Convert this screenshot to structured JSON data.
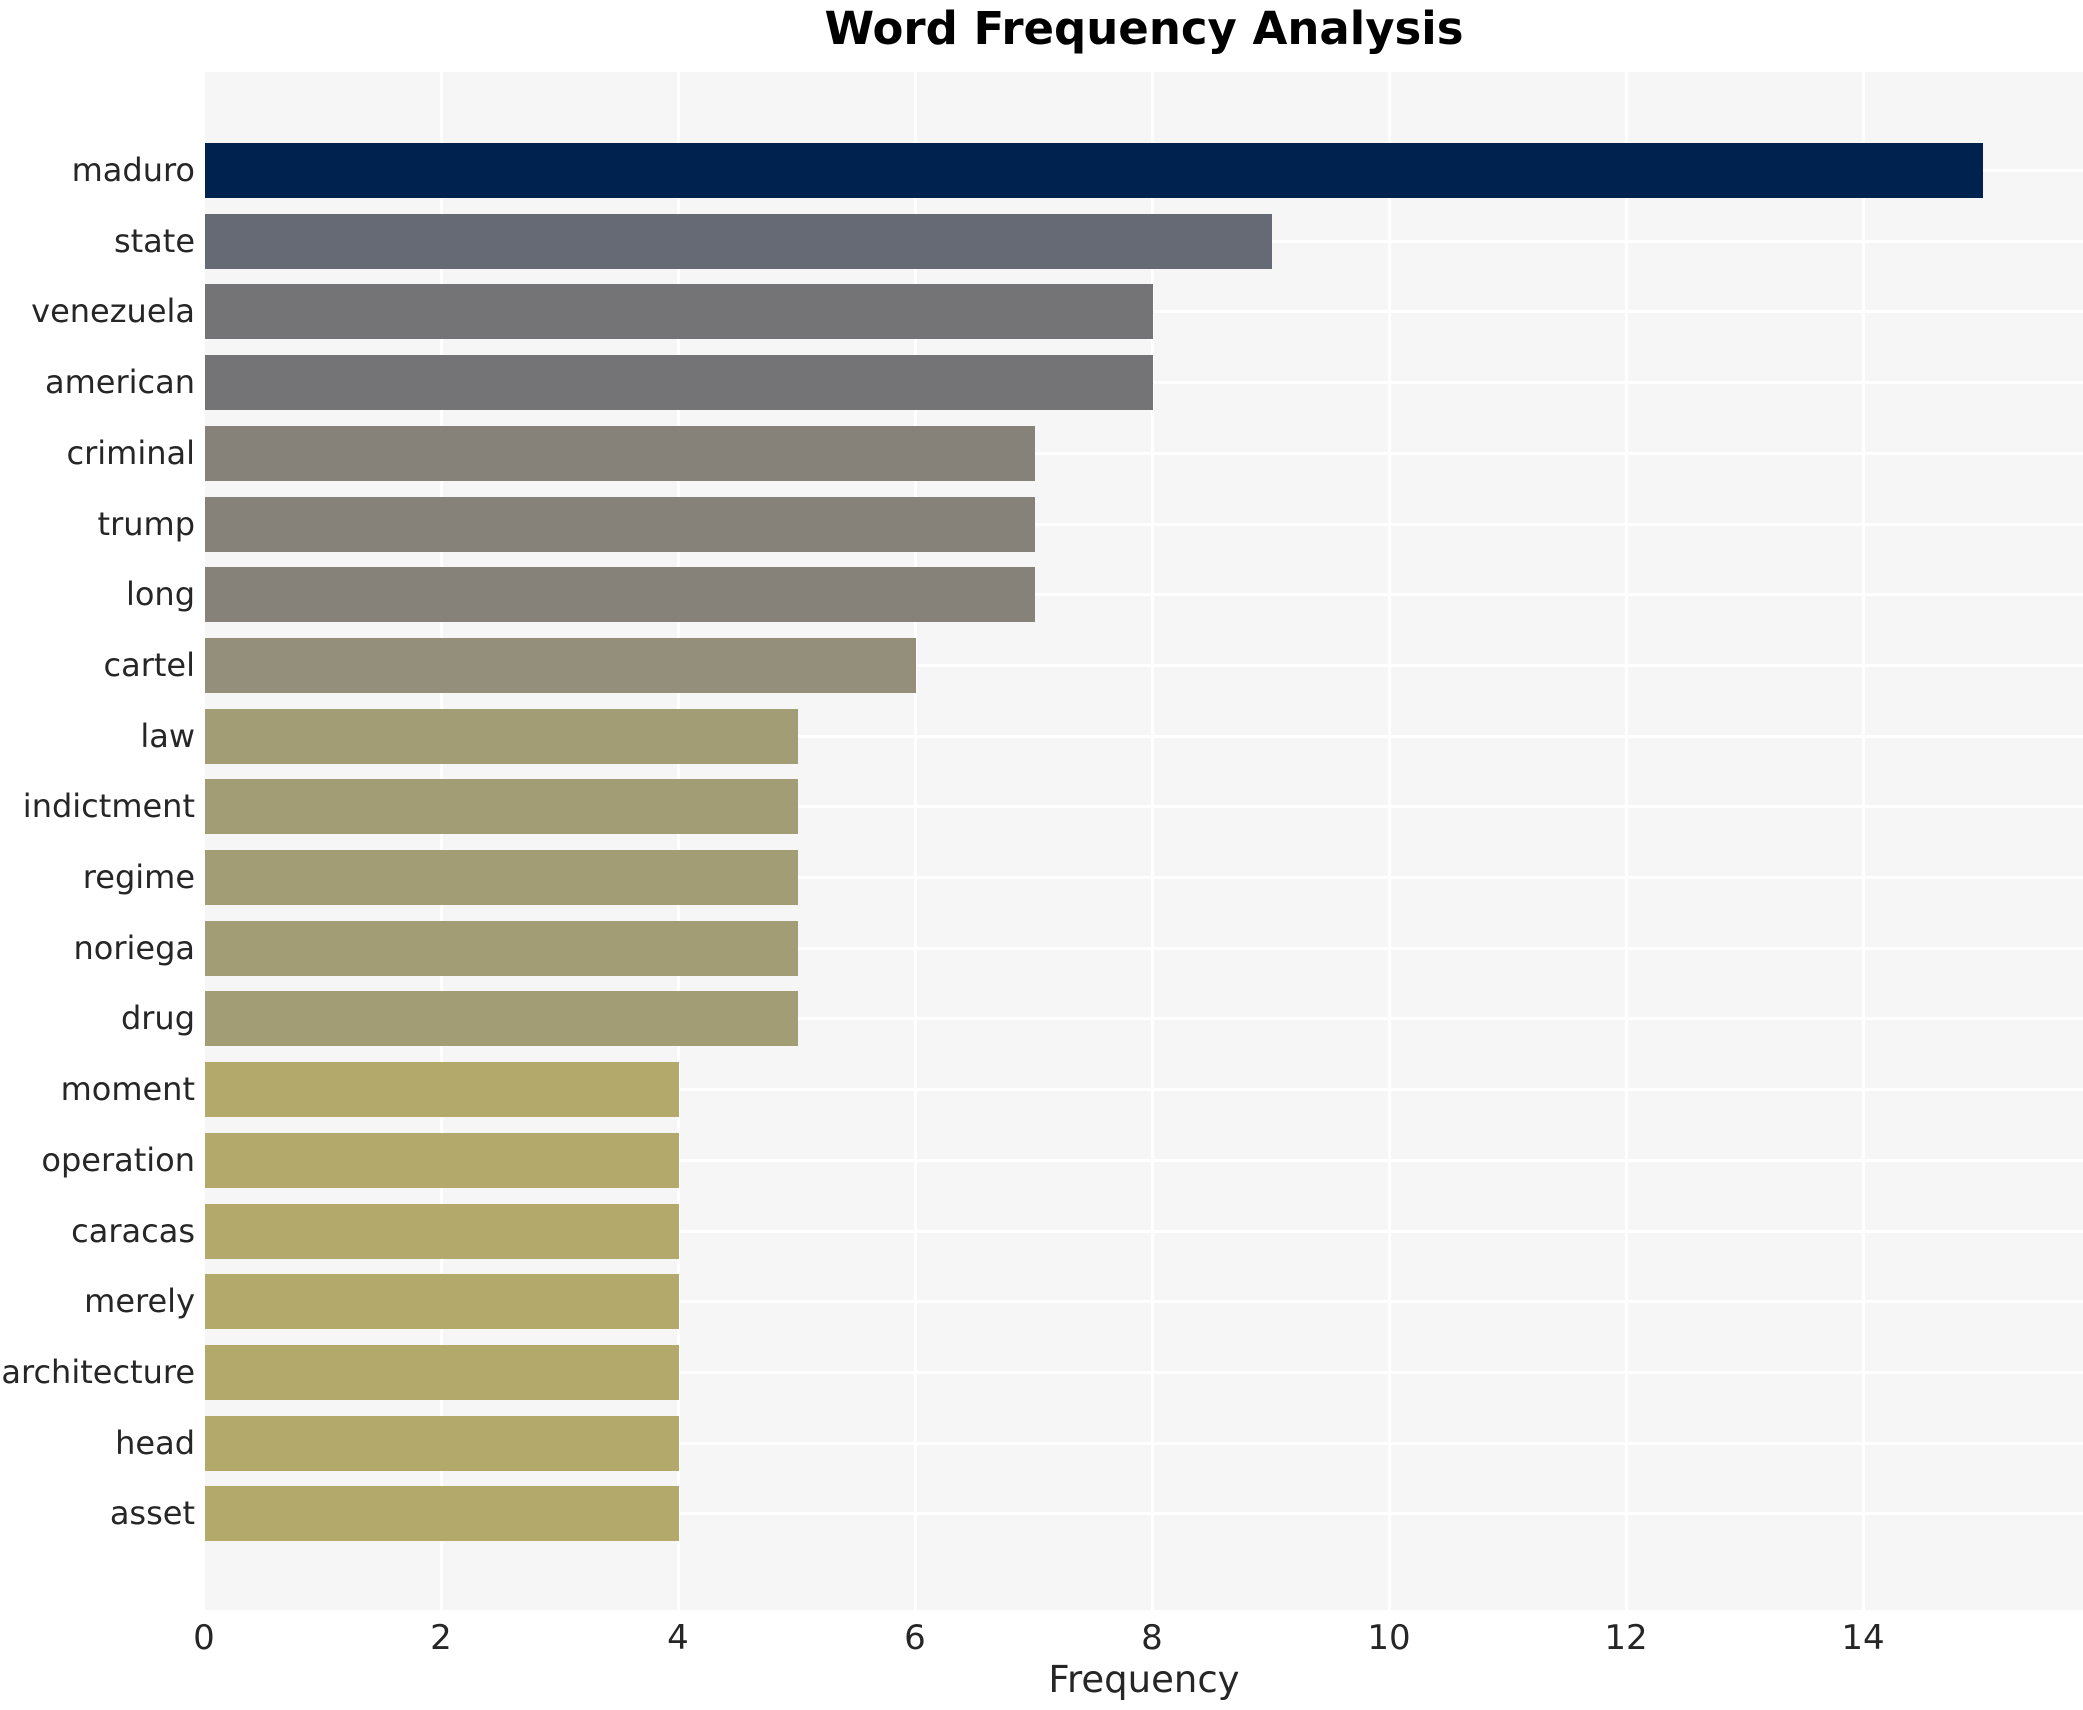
{
  "chart_data": {
    "type": "bar",
    "orientation": "horizontal",
    "title": "Word Frequency Analysis",
    "xlabel": "Frequency",
    "ylabel": "",
    "categories": [
      "maduro",
      "state",
      "venezuela",
      "american",
      "criminal",
      "trump",
      "long",
      "cartel",
      "law",
      "indictment",
      "regime",
      "noriega",
      "drug",
      "moment",
      "operation",
      "caracas",
      "merely",
      "architecture",
      "head",
      "asset"
    ],
    "values": [
      15,
      9,
      8,
      8,
      7,
      7,
      7,
      6,
      5,
      5,
      5,
      5,
      5,
      4,
      4,
      4,
      4,
      4,
      4,
      4
    ],
    "bar_colors": [
      "#00224e",
      "#666a74",
      "#747476",
      "#747476",
      "#86827a",
      "#86827a",
      "#86827a",
      "#948f7b",
      "#a39d75",
      "#a39d75",
      "#a39d75",
      "#a39d75",
      "#a39d75",
      "#b3a96b",
      "#b3a96b",
      "#b3a96b",
      "#b3a96b",
      "#b3a96b",
      "#b3a96b",
      "#b3a96b"
    ],
    "xticks": [
      0,
      2,
      4,
      6,
      8,
      10,
      12,
      14
    ],
    "xlim": [
      0,
      15.85
    ],
    "grid": "on",
    "legend": "none",
    "plot_bg_color": "#f6f6f7",
    "grid_color": "#ffffff",
    "text_color": "#262626",
    "title_color": "#000000"
  }
}
